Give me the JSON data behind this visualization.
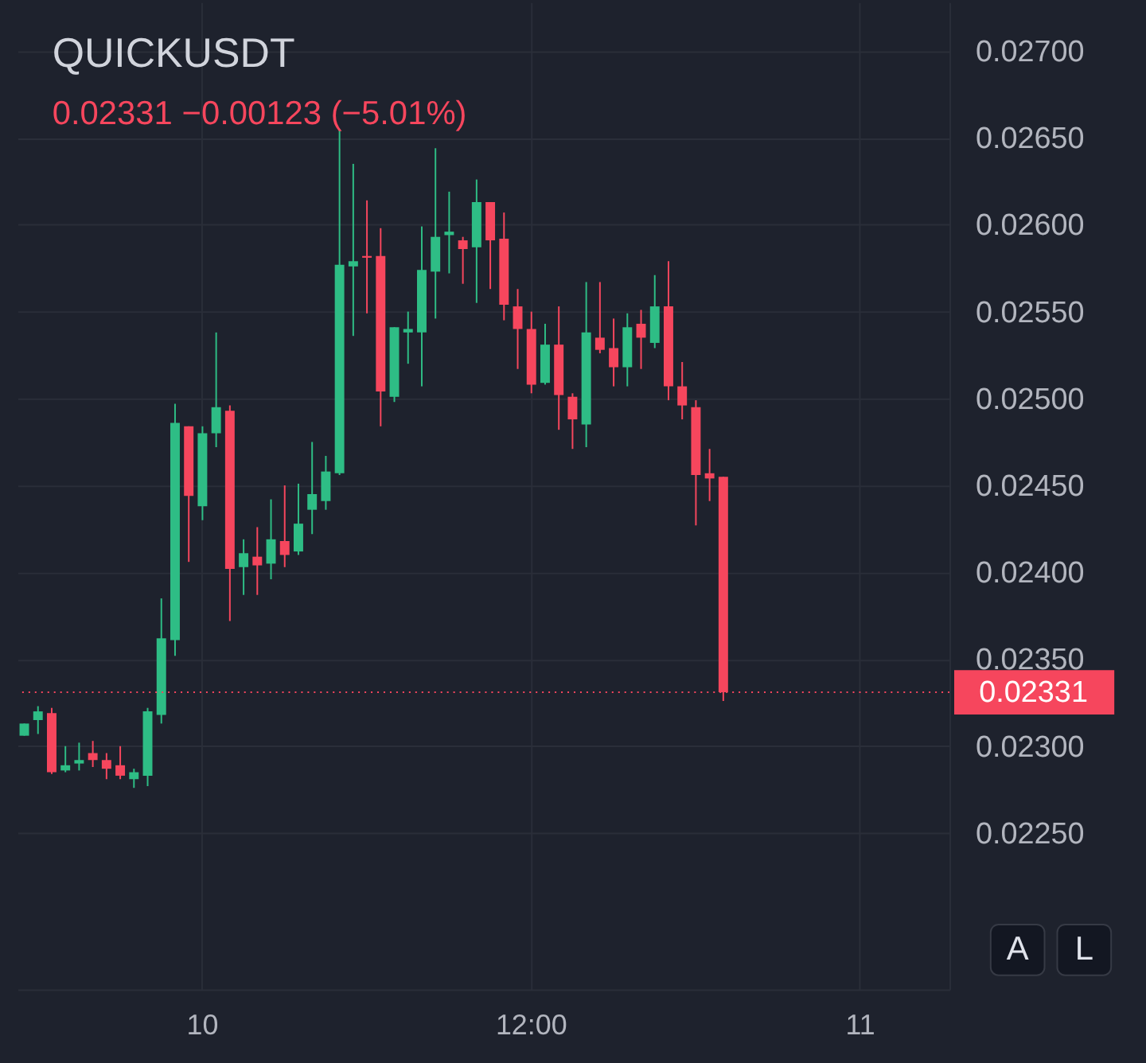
{
  "chart_data": {
    "type": "candlestick",
    "title": "QUICKUSDT",
    "subtitle": "0.02331 −0.00123 (−5.01%)",
    "categories": [
      null,
      null,
      null,
      null,
      null,
      null,
      null,
      null,
      null,
      null,
      null,
      null,
      null,
      "10",
      null,
      null,
      null,
      null,
      null,
      null,
      null,
      null,
      null,
      null,
      null,
      null,
      null,
      null,
      null,
      null,
      null,
      null,
      null,
      null,
      null,
      null,
      null,
      "12:00",
      null,
      null,
      null,
      null,
      null,
      null,
      null,
      null,
      null,
      null,
      null,
      null,
      null,
      null,
      null,
      null,
      null,
      null,
      null,
      null,
      null,
      null,
      null,
      "11",
      null,
      null,
      null,
      null,
      null,
      null
    ],
    "ohlc": [
      [
        0.02306,
        0.02313,
        0.02306,
        0.02313
      ],
      [
        0.02315,
        0.02323,
        0.02307,
        0.0232
      ],
      [
        0.02319,
        0.02322,
        0.02284,
        0.02285
      ],
      [
        0.02286,
        0.023,
        0.02285,
        0.02289
      ],
      [
        0.0229,
        0.02302,
        0.02286,
        0.02292
      ],
      [
        0.02296,
        0.02303,
        0.02288,
        0.02292
      ],
      [
        0.02292,
        0.02296,
        0.02281,
        0.02287
      ],
      [
        0.02289,
        0.023,
        0.02281,
        0.02283
      ],
      [
        0.02281,
        0.02287,
        0.02276,
        0.02285
      ],
      [
        0.02283,
        0.02322,
        0.02277,
        0.0232
      ],
      [
        0.02318,
        0.02385,
        0.02313,
        0.02362
      ],
      [
        0.02361,
        0.02497,
        0.02352,
        0.02486
      ],
      [
        0.02484,
        0.02484,
        0.02406,
        0.02444
      ],
      [
        0.02438,
        0.02484,
        0.0243,
        0.0248
      ],
      [
        0.0248,
        0.02538,
        0.02472,
        0.02495
      ],
      [
        0.02493,
        0.02496,
        0.02372,
        0.02402
      ],
      [
        0.02403,
        0.02419,
        0.02387,
        0.02411
      ],
      [
        0.02409,
        0.02426,
        0.02387,
        0.02404
      ],
      [
        0.02405,
        0.02442,
        0.02396,
        0.02419
      ],
      [
        0.02418,
        0.0245,
        0.02403,
        0.0241
      ],
      [
        0.02412,
        0.02451,
        0.0241,
        0.02428
      ],
      [
        0.02436,
        0.02475,
        0.02422,
        0.02445
      ],
      [
        0.02441,
        0.02467,
        0.02436,
        0.02458
      ],
      [
        0.02457,
        0.02655,
        0.02456,
        0.02577
      ],
      [
        0.02576,
        0.02635,
        0.02536,
        0.02579
      ],
      [
        0.02582,
        0.02614,
        0.02549,
        0.02581
      ],
      [
        0.02582,
        0.02598,
        0.02484,
        0.02504
      ],
      [
        0.02501,
        0.02541,
        0.02498,
        0.02541
      ],
      [
        0.02538,
        0.0255,
        0.0252,
        0.0254
      ],
      [
        0.02538,
        0.02599,
        0.02507,
        0.02574
      ],
      [
        0.02573,
        0.02644,
        0.02546,
        0.02593
      ],
      [
        0.02594,
        0.02619,
        0.02572,
        0.02596
      ],
      [
        0.02591,
        0.02593,
        0.02566,
        0.02586
      ],
      [
        0.02587,
        0.02626,
        0.02555,
        0.02613
      ],
      [
        0.02613,
        0.02613,
        0.02563,
        0.02591
      ],
      [
        0.02592,
        0.02607,
        0.02545,
        0.02554
      ],
      [
        0.02553,
        0.02563,
        0.02517,
        0.0254
      ],
      [
        0.0254,
        0.0255,
        0.02503,
        0.02508
      ],
      [
        0.02509,
        0.02543,
        0.02508,
        0.02531
      ],
      [
        0.02531,
        0.02553,
        0.02482,
        0.02502
      ],
      [
        0.02501,
        0.02503,
        0.02471,
        0.02488
      ],
      [
        0.02485,
        0.02567,
        0.02472,
        0.02538
      ],
      [
        0.02535,
        0.02567,
        0.02526,
        0.02528
      ],
      [
        0.02529,
        0.02546,
        0.02507,
        0.02518
      ],
      [
        0.02518,
        0.02549,
        0.02507,
        0.02541
      ],
      [
        0.02543,
        0.02551,
        0.02517,
        0.02535
      ],
      [
        0.02532,
        0.02571,
        0.02529,
        0.02553
      ],
      [
        0.02553,
        0.02579,
        0.02499,
        0.02507
      ],
      [
        0.02507,
        0.02521,
        0.02488,
        0.02496
      ],
      [
        0.02495,
        0.02499,
        0.02427,
        0.02456
      ],
      [
        0.02457,
        0.02471,
        0.02441,
        0.02454
      ],
      [
        0.02455,
        0.02455,
        0.02326,
        0.02331
      ],
      null,
      null,
      null,
      null,
      null,
      null,
      null,
      null,
      null,
      null,
      null,
      null,
      null,
      null,
      null,
      null
    ],
    "colors": [
      "#2ebd85",
      "#2ebd85",
      "#f6465d",
      "#2ebd85",
      "#2ebd85",
      "#f6465d",
      "#f6465d",
      "#f6465d",
      "#2ebd85",
      "#2ebd85",
      "#2ebd85",
      "#2ebd85",
      "#f6465d",
      "#2ebd85",
      "#2ebd85",
      "#f6465d",
      "#2ebd85",
      "#f6465d",
      "#2ebd85",
      "#f6465d",
      "#2ebd85",
      "#2ebd85",
      "#2ebd85",
      "#2ebd85",
      "#2ebd85",
      "#f6465d",
      "#f6465d",
      "#2ebd85",
      "#2ebd85",
      "#2ebd85",
      "#2ebd85",
      "#2ebd85",
      "#f6465d",
      "#2ebd85",
      "#f6465d",
      "#f6465d",
      "#f6465d",
      "#f6465d",
      "#2ebd85",
      "#f6465d",
      "#f6465d",
      "#2ebd85",
      "#f6465d",
      "#f6465d",
      "#2ebd85",
      "#f6465d",
      "#2ebd85",
      "#f6465d",
      "#f6465d",
      "#f6465d",
      "#f6465d",
      "#f6465d",
      null,
      null,
      null,
      null,
      null,
      null,
      null,
      null,
      null,
      null,
      null,
      null,
      null,
      null,
      null,
      null
    ],
    "ylim": [
      0.0216,
      0.02728
    ],
    "yticks": [
      {
        "value": 0.0225,
        "label": "0.02250"
      },
      {
        "value": 0.023,
        "label": "0.02300"
      },
      {
        "value": 0.0235,
        "label": "0.02350"
      },
      {
        "value": 0.024,
        "label": "0.02400"
      },
      {
        "value": 0.0245,
        "label": "0.02450"
      },
      {
        "value": 0.025,
        "label": "0.02500"
      },
      {
        "value": 0.0255,
        "label": "0.02550"
      },
      {
        "value": 0.026,
        "label": "0.02600"
      },
      {
        "value": 0.0265,
        "label": "0.02650"
      },
      {
        "value": 0.027,
        "label": "0.02700"
      }
    ],
    "ref_lines": [
      {
        "axis": "y",
        "value": 0.02331,
        "label": "0.02331",
        "color": "#f6465d",
        "line_style": "dotted"
      }
    ],
    "annotations": [
      "A",
      "L"
    ],
    "grid": true
  }
}
